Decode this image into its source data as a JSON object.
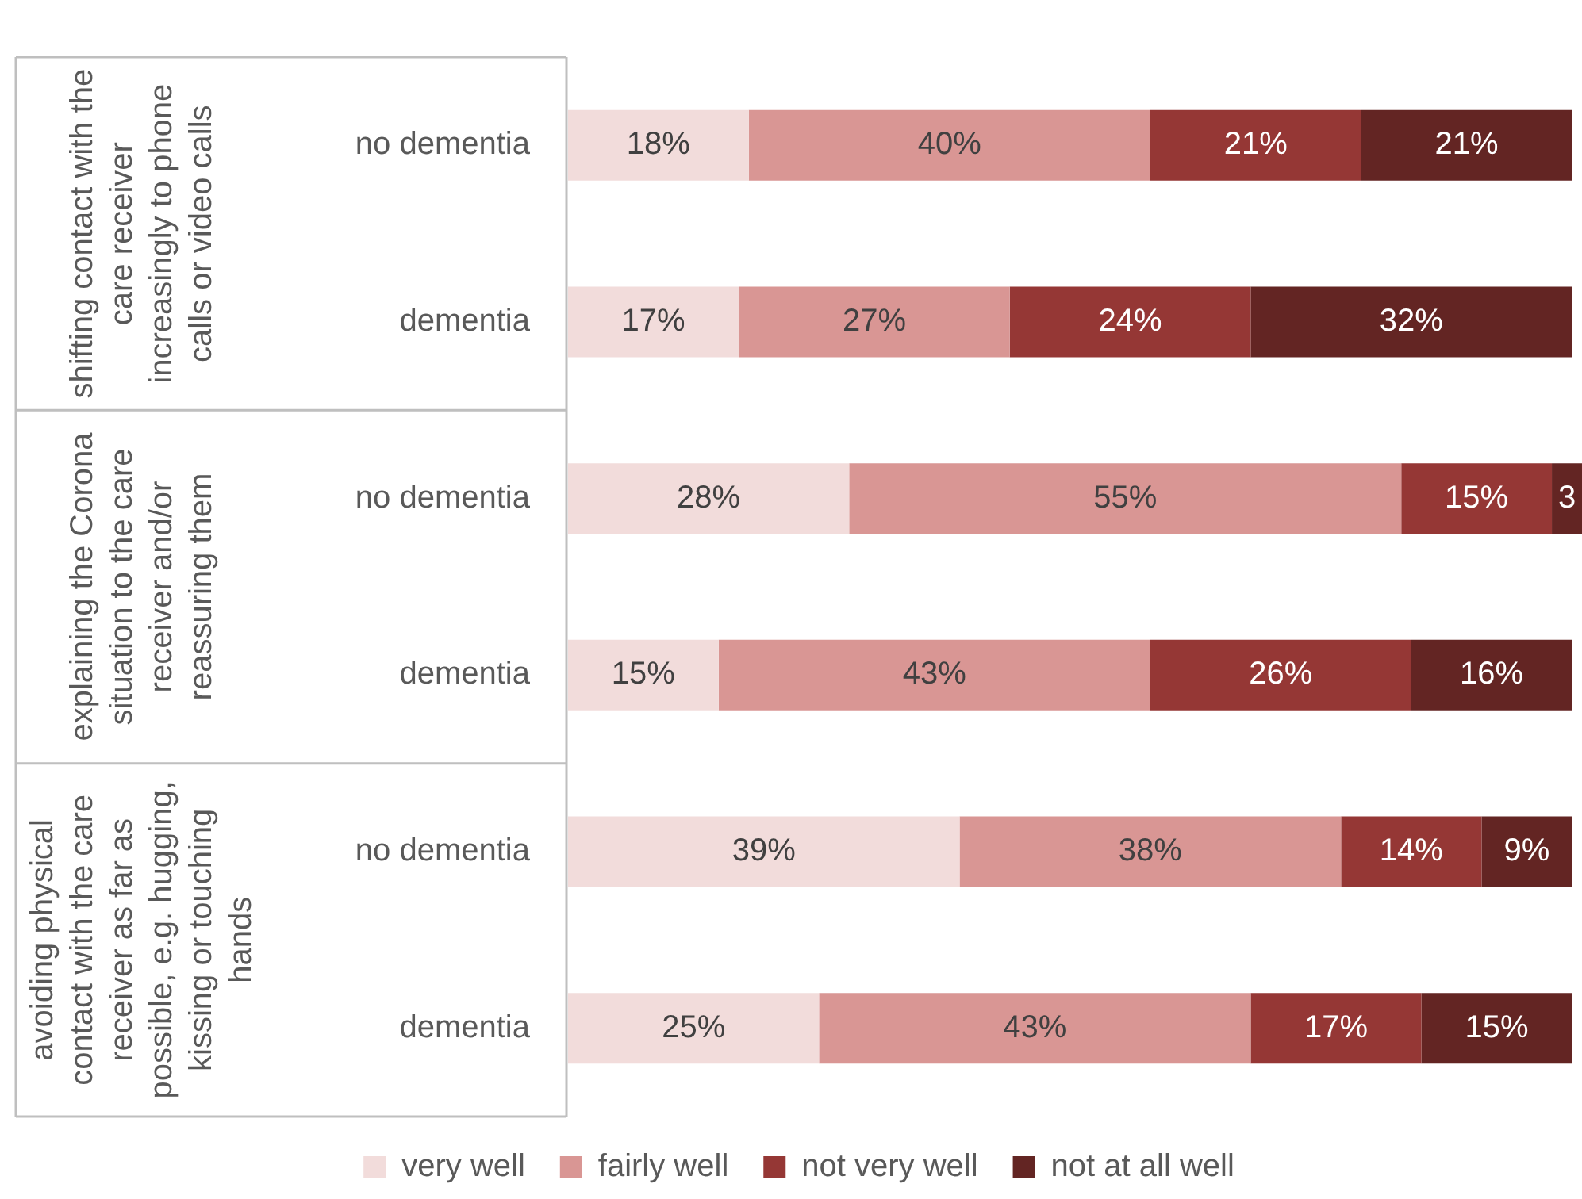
{
  "chart_data": {
    "type": "bar",
    "orientation": "horizontal",
    "stacked": true,
    "legend": "bottom",
    "grid": false,
    "tick_labels": "y",
    "categories": [
      "no dementia",
      "dementia",
      "no dementia",
      "dementia",
      "no dementia",
      "dementia"
    ],
    "annotations": [
      "shifting contact with the care receiver increasingly to phone calls or video calls",
      "explaining the Corona situation to the care receiver and/or reassuring them",
      "avoiding physical contact with the care receiver as far as possible, e.g. hugging, kissing or touching hands"
    ],
    "series": [
      {
        "name": "very well",
        "color": "#f2dcdb",
        "values": [
          18,
          17,
          28,
          15,
          39,
          25
        ],
        "value_labels": [
          "18%",
          "17%",
          "28%",
          "15%",
          "39%",
          "25%"
        ]
      },
      {
        "name": "fairly well",
        "color": "#d99694",
        "values": [
          40,
          27,
          55,
          43,
          38,
          43
        ],
        "value_labels": [
          "40%",
          "27%",
          "55%",
          "43%",
          "38%",
          "43%"
        ]
      },
      {
        "name": "not very well",
        "color": "#953735",
        "values": [
          21,
          24,
          15,
          26,
          14,
          17
        ],
        "value_labels": [
          "21%",
          "24%",
          "15%",
          "26%",
          "14%",
          "17%"
        ]
      },
      {
        "name": "not at all well",
        "color": "#632523",
        "values": [
          21,
          32,
          3,
          16,
          9,
          15
        ],
        "value_labels": [
          "21%",
          "32%",
          "3",
          "16%",
          "9%",
          "15%"
        ]
      }
    ]
  }
}
